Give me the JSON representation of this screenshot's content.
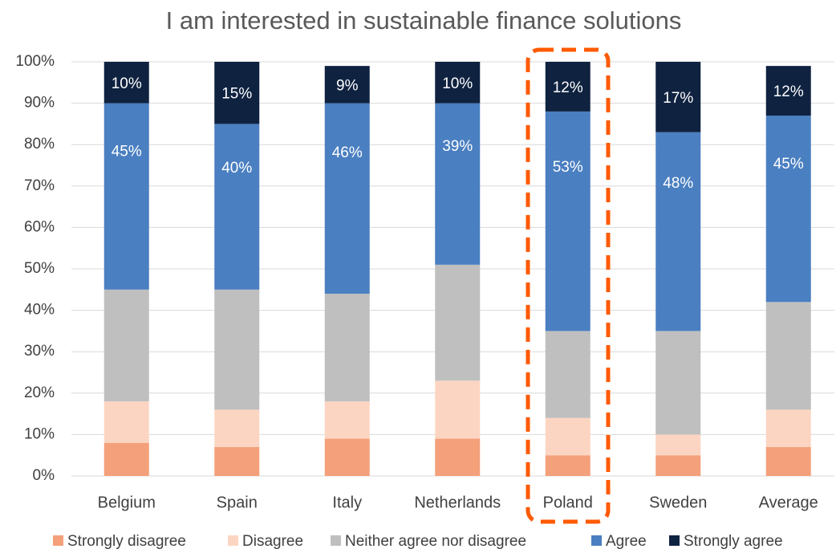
{
  "chart_data": {
    "type": "stacked_bar",
    "title": "I am interested in sustainable finance solutions",
    "categories": [
      "Belgium",
      "Spain",
      "Italy",
      "Netherlands",
      "Poland",
      "Sweden",
      "Average"
    ],
    "series": [
      {
        "name": "Strongly disagree",
        "color": "#f4a07a",
        "values": [
          8,
          7,
          9,
          9,
          5,
          5,
          7
        ]
      },
      {
        "name": "Disagree",
        "color": "#fcd5c2",
        "values": [
          10,
          9,
          9,
          14,
          9,
          5,
          9
        ]
      },
      {
        "name": "Neither agree nor disagree",
        "color": "#bfbfbf",
        "values": [
          27,
          29,
          26,
          28,
          21,
          25,
          26
        ]
      },
      {
        "name": "Agree",
        "color": "#4a7fc1",
        "values": [
          45,
          40,
          46,
          39,
          53,
          48,
          45
        ],
        "value_labels": [
          "45%",
          "40%",
          "46%",
          "39%",
          "53%",
          "48%",
          "45%"
        ]
      },
      {
        "name": "Strongly agree",
        "color": "#0f2240",
        "values": [
          10,
          15,
          9,
          10,
          12,
          17,
          12
        ],
        "value_labels": [
          "10%",
          "15%",
          "9%",
          "10%",
          "12%",
          "17%",
          "12%"
        ]
      }
    ],
    "ylim": [
      0,
      100
    ],
    "yticks": [
      {
        "value": 0,
        "label": "0%"
      },
      {
        "value": 10,
        "label": "10%"
      },
      {
        "value": 20,
        "label": "20%"
      },
      {
        "value": 30,
        "label": "30%"
      },
      {
        "value": 40,
        "label": "40%"
      },
      {
        "value": 50,
        "label": "50%"
      },
      {
        "value": 60,
        "label": "60%"
      },
      {
        "value": 70,
        "label": "70%"
      },
      {
        "value": 80,
        "label": "80%"
      },
      {
        "value": 90,
        "label": "90%"
      },
      {
        "value": 100,
        "label": "100%"
      }
    ],
    "grid": true,
    "legend": "bottom"
  }
}
